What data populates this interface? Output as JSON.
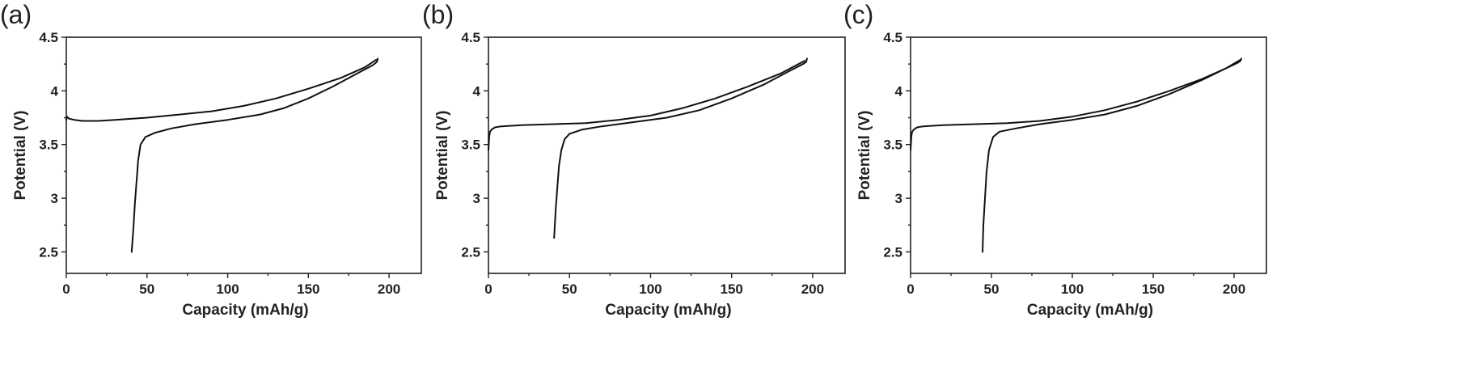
{
  "chart_data": [
    {
      "type": "line",
      "panel_label": "(a)",
      "xlabel": "Capacity (mAh/g)",
      "ylabel": "Potential (V)",
      "xlim": [
        0,
        220
      ],
      "ylim": [
        2.3,
        4.5
      ],
      "x_ticks": [
        0,
        50,
        100,
        150,
        200
      ],
      "y_ticks": [
        2.5,
        3,
        3.5,
        4,
        4.5
      ],
      "x_tick_labels": [
        "0",
        "50",
        "100",
        "150",
        "200"
      ],
      "y_tick_labels": [
        "2.5",
        "3",
        "3.5",
        "4",
        "4.5"
      ],
      "grid": false,
      "series": [
        {
          "x": [
            0,
            0.5,
            1,
            2,
            5,
            10,
            20,
            30,
            50,
            70,
            90,
            110,
            130,
            150,
            170,
            185,
            192
          ],
          "y": [
            3.73,
            3.76,
            3.75,
            3.74,
            3.73,
            3.72,
            3.72,
            3.73,
            3.75,
            3.78,
            3.81,
            3.86,
            3.93,
            4.02,
            4.12,
            4.22,
            4.29
          ]
        },
        {
          "x": [
            193,
            192.5,
            190,
            180,
            165,
            150,
            135,
            120,
            100,
            80,
            65,
            55,
            49,
            46,
            44.5,
            43.5,
            42.5,
            41.5,
            40.5
          ],
          "y": [
            4.3,
            4.27,
            4.24,
            4.16,
            4.04,
            3.93,
            3.84,
            3.78,
            3.73,
            3.69,
            3.65,
            3.61,
            3.57,
            3.5,
            3.35,
            3.15,
            2.95,
            2.7,
            2.5
          ]
        }
      ]
    },
    {
      "type": "line",
      "panel_label": "(b)",
      "xlabel": "Capacity (mAh/g)",
      "ylabel": "Potential (V)",
      "xlim": [
        0,
        220
      ],
      "ylim": [
        2.3,
        4.5
      ],
      "x_ticks": [
        0,
        50,
        100,
        150,
        200
      ],
      "y_ticks": [
        2.5,
        3,
        3.5,
        4,
        4.5
      ],
      "x_tick_labels": [
        "0",
        "50",
        "100",
        "150",
        "200"
      ],
      "y_tick_labels": [
        "2.5",
        "3",
        "3.5",
        "4",
        "4.5"
      ],
      "grid": false,
      "series": [
        {
          "x": [
            0,
            0.5,
            1,
            2,
            4,
            8,
            20,
            40,
            60,
            80,
            100,
            120,
            140,
            160,
            180,
            195
          ],
          "y": [
            3.45,
            3.58,
            3.62,
            3.64,
            3.66,
            3.67,
            3.68,
            3.69,
            3.7,
            3.73,
            3.77,
            3.84,
            3.93,
            4.04,
            4.16,
            4.28
          ]
        },
        {
          "x": [
            196.5,
            196,
            194,
            185,
            170,
            150,
            130,
            110,
            90,
            70,
            58,
            50,
            47,
            45,
            43.5,
            42.5,
            41.5,
            40.5
          ],
          "y": [
            4.3,
            4.27,
            4.25,
            4.18,
            4.06,
            3.93,
            3.82,
            3.75,
            3.71,
            3.67,
            3.64,
            3.6,
            3.55,
            3.45,
            3.3,
            3.1,
            2.9,
            2.63
          ]
        }
      ]
    },
    {
      "type": "line",
      "panel_label": "(c)",
      "xlabel": "Capacity (mAh/g)",
      "ylabel": "Potential (V)",
      "xlim": [
        0,
        220
      ],
      "ylim": [
        2.3,
        4.5
      ],
      "x_ticks": [
        0,
        50,
        100,
        150,
        200
      ],
      "y_ticks": [
        2.5,
        3,
        3.5,
        4,
        4.5
      ],
      "x_tick_labels": [
        "0",
        "50",
        "100",
        "150",
        "200"
      ],
      "y_tick_labels": [
        "2.5",
        "3",
        "3.5",
        "4",
        "4.5"
      ],
      "grid": false,
      "series": [
        {
          "x": [
            0,
            0.5,
            1,
            2,
            4,
            8,
            20,
            40,
            60,
            80,
            100,
            120,
            140,
            160,
            180,
            195,
            204
          ],
          "y": [
            3.45,
            3.58,
            3.62,
            3.64,
            3.66,
            3.67,
            3.68,
            3.69,
            3.7,
            3.72,
            3.76,
            3.82,
            3.9,
            4.0,
            4.11,
            4.21,
            4.29
          ]
        },
        {
          "x": [
            204.5,
            204,
            202,
            195,
            180,
            160,
            140,
            120,
            100,
            80,
            65,
            55,
            51,
            48.5,
            47,
            46,
            45,
            44.5
          ],
          "y": [
            4.3,
            4.28,
            4.26,
            4.21,
            4.1,
            3.97,
            3.86,
            3.78,
            3.73,
            3.69,
            3.65,
            3.62,
            3.57,
            3.45,
            3.25,
            3.0,
            2.75,
            2.5
          ]
        }
      ]
    }
  ]
}
